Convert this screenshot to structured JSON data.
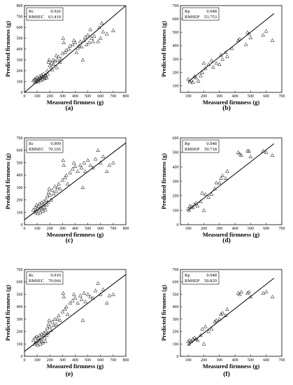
{
  "figure_kind": "scatter panels",
  "chart_data": [
    {
      "type": "scatter",
      "panel_label": "(a)",
      "xlabel": "Measured firmness (g)",
      "ylabel": "Predicted firmness (g)",
      "xlim": [
        0,
        800
      ],
      "ylim": [
        0,
        800
      ],
      "xticks": [
        0,
        100,
        200,
        300,
        400,
        500,
        600,
        700,
        800
      ],
      "yticks": [
        0,
        100,
        200,
        300,
        400,
        500,
        600,
        700,
        800
      ],
      "stats": [
        {
          "name": "Rc",
          "value": "0.926"
        },
        {
          "name": "RMSEC",
          "value": "63.410"
        }
      ],
      "line": [
        [
          0,
          0
        ],
        [
          800,
          800
        ]
      ],
      "points": [
        [
          70,
          110
        ],
        [
          80,
          120
        ],
        [
          85,
          95
        ],
        [
          90,
          130
        ],
        [
          95,
          105
        ],
        [
          100,
          140
        ],
        [
          105,
          115
        ],
        [
          110,
          100
        ],
        [
          115,
          125
        ],
        [
          120,
          150
        ],
        [
          125,
          135
        ],
        [
          130,
          110
        ],
        [
          135,
          160
        ],
        [
          140,
          145
        ],
        [
          145,
          120
        ],
        [
          150,
          170
        ],
        [
          155,
          140
        ],
        [
          160,
          130
        ],
        [
          165,
          160
        ],
        [
          170,
          150
        ],
        [
          175,
          135
        ],
        [
          180,
          200
        ],
        [
          185,
          170
        ],
        [
          190,
          280
        ],
        [
          195,
          300
        ],
        [
          200,
          250
        ],
        [
          210,
          230
        ],
        [
          215,
          270
        ],
        [
          220,
          210
        ],
        [
          225,
          300
        ],
        [
          230,
          260
        ],
        [
          240,
          290
        ],
        [
          250,
          340
        ],
        [
          255,
          230
        ],
        [
          260,
          300
        ],
        [
          270,
          330
        ],
        [
          280,
          280
        ],
        [
          290,
          310
        ],
        [
          300,
          360
        ],
        [
          305,
          500
        ],
        [
          310,
          460
        ],
        [
          320,
          370
        ],
        [
          330,
          390
        ],
        [
          350,
          400
        ],
        [
          360,
          430
        ],
        [
          380,
          440
        ],
        [
          390,
          480
        ],
        [
          400,
          460
        ],
        [
          410,
          370
        ],
        [
          420,
          410
        ],
        [
          430,
          430
        ],
        [
          440,
          470
        ],
        [
          450,
          420
        ],
        [
          460,
          300
        ],
        [
          470,
          480
        ],
        [
          480,
          510
        ],
        [
          490,
          440
        ],
        [
          500,
          530
        ],
        [
          510,
          460
        ],
        [
          520,
          580
        ],
        [
          530,
          500
        ],
        [
          540,
          470
        ],
        [
          550,
          520
        ],
        [
          580,
          470
        ],
        [
          590,
          600
        ],
        [
          600,
          500
        ],
        [
          610,
          640
        ],
        [
          620,
          560
        ],
        [
          650,
          540
        ],
        [
          700,
          570
        ]
      ]
    },
    {
      "type": "scatter",
      "panel_label": "(b)",
      "xlabel": "Measured firmness (g)",
      "ylabel": "Predicted firmness (g)",
      "xlim": [
        50,
        700
      ],
      "ylim": [
        50,
        700
      ],
      "xticks": [
        100,
        200,
        300,
        400,
        500,
        600,
        700
      ],
      "yticks": [
        100,
        200,
        300,
        400,
        500,
        600,
        700
      ],
      "stats": [
        {
          "name": "Rp",
          "value": "0.948"
        },
        {
          "name": "RMSEP",
          "value": "53.753"
        }
      ],
      "line": [
        [
          100,
          130
        ],
        [
          650,
          640
        ]
      ],
      "points": [
        [
          100,
          150
        ],
        [
          110,
          130
        ],
        [
          120,
          140
        ],
        [
          130,
          125
        ],
        [
          140,
          170
        ],
        [
          150,
          160
        ],
        [
          165,
          135
        ],
        [
          180,
          175
        ],
        [
          190,
          200
        ],
        [
          200,
          270
        ],
        [
          210,
          230
        ],
        [
          230,
          260
        ],
        [
          250,
          290
        ],
        [
          260,
          240
        ],
        [
          280,
          270
        ],
        [
          300,
          260
        ],
        [
          310,
          330
        ],
        [
          320,
          300
        ],
        [
          340,
          350
        ],
        [
          350,
          320
        ],
        [
          380,
          380
        ],
        [
          420,
          440
        ],
        [
          430,
          450
        ],
        [
          470,
          410
        ],
        [
          480,
          500
        ],
        [
          490,
          490
        ],
        [
          500,
          460
        ],
        [
          580,
          480
        ],
        [
          600,
          510
        ],
        [
          640,
          440
        ]
      ]
    },
    {
      "type": "scatter",
      "panel_label": "(c)",
      "xlabel": "Measured firmness (g)",
      "ylabel": "Predicted firmness (g)",
      "xlim": [
        0,
        800
      ],
      "ylim": [
        0,
        700
      ],
      "xticks": [
        0,
        100,
        200,
        300,
        400,
        500,
        600,
        700,
        800
      ],
      "yticks": [
        0,
        100,
        200,
        300,
        400,
        500,
        600,
        700
      ],
      "stats": [
        {
          "name": "Rc",
          "value": "0.909"
        },
        {
          "name": "RMSEC",
          "value": "70.165"
        }
      ],
      "line": [
        [
          0,
          40
        ],
        [
          800,
          660
        ]
      ],
      "points": [
        [
          70,
          120
        ],
        [
          80,
          100
        ],
        [
          85,
          140
        ],
        [
          90,
          110
        ],
        [
          95,
          160
        ],
        [
          100,
          130
        ],
        [
          105,
          90
        ],
        [
          110,
          150
        ],
        [
          115,
          120
        ],
        [
          120,
          170
        ],
        [
          125,
          100
        ],
        [
          130,
          140
        ],
        [
          135,
          180
        ],
        [
          140,
          130
        ],
        [
          145,
          110
        ],
        [
          150,
          160
        ],
        [
          155,
          190
        ],
        [
          160,
          140
        ],
        [
          165,
          120
        ],
        [
          170,
          200
        ],
        [
          175,
          160
        ],
        [
          180,
          230
        ],
        [
          185,
          180
        ],
        [
          190,
          260
        ],
        [
          195,
          290
        ],
        [
          200,
          240
        ],
        [
          210,
          200
        ],
        [
          220,
          280
        ],
        [
          230,
          250
        ],
        [
          240,
          310
        ],
        [
          250,
          270
        ],
        [
          260,
          300
        ],
        [
          270,
          330
        ],
        [
          280,
          290
        ],
        [
          300,
          360
        ],
        [
          305,
          520
        ],
        [
          310,
          480
        ],
        [
          320,
          380
        ],
        [
          330,
          400
        ],
        [
          340,
          330
        ],
        [
          360,
          420
        ],
        [
          380,
          450
        ],
        [
          390,
          500
        ],
        [
          400,
          470
        ],
        [
          420,
          430
        ],
        [
          440,
          480
        ],
        [
          450,
          460
        ],
        [
          460,
          300
        ],
        [
          470,
          500
        ],
        [
          480,
          430
        ],
        [
          500,
          520
        ],
        [
          520,
          480
        ],
        [
          540,
          460
        ],
        [
          560,
          530
        ],
        [
          580,
          600
        ],
        [
          600,
          500
        ],
        [
          620,
          550
        ],
        [
          650,
          430
        ],
        [
          670,
          480
        ],
        [
          700,
          500
        ]
      ]
    },
    {
      "type": "scatter",
      "panel_label": "(d)",
      "xlabel": "Measured firmness (g)",
      "ylabel": "Predicted firmness (g)",
      "xlim": [
        50,
        700
      ],
      "ylim": [
        0,
        600
      ],
      "xticks": [
        100,
        200,
        300,
        400,
        500,
        600,
        700
      ],
      "yticks": [
        0,
        100,
        200,
        300,
        400,
        500,
        600
      ],
      "stats": [
        {
          "name": "Rp",
          "value": "0.948"
        },
        {
          "name": "RMSEP",
          "value": "50.718"
        }
      ],
      "line": [
        [
          100,
          100
        ],
        [
          650,
          560
        ]
      ],
      "points": [
        [
          100,
          110
        ],
        [
          105,
          100
        ],
        [
          110,
          130
        ],
        [
          120,
          125
        ],
        [
          130,
          120
        ],
        [
          140,
          140
        ],
        [
          150,
          150
        ],
        [
          160,
          130
        ],
        [
          180,
          160
        ],
        [
          190,
          220
        ],
        [
          200,
          100
        ],
        [
          210,
          210
        ],
        [
          230,
          190
        ],
        [
          250,
          210
        ],
        [
          270,
          250
        ],
        [
          280,
          290
        ],
        [
          300,
          290
        ],
        [
          310,
          320
        ],
        [
          320,
          340
        ],
        [
          340,
          320
        ],
        [
          350,
          370
        ],
        [
          420,
          500
        ],
        [
          430,
          490
        ],
        [
          440,
          480
        ],
        [
          480,
          510
        ],
        [
          490,
          510
        ],
        [
          500,
          470
        ],
        [
          580,
          510
        ],
        [
          600,
          500
        ],
        [
          640,
          480
        ]
      ]
    },
    {
      "type": "scatter",
      "panel_label": "(e)",
      "xlabel": "Measured firmness (g)",
      "ylabel": "Predicted firmness (g)",
      "xlim": [
        0,
        800
      ],
      "ylim": [
        0,
        700
      ],
      "xticks": [
        0,
        100,
        200,
        300,
        400,
        500,
        600,
        700,
        800
      ],
      "yticks": [
        0,
        100,
        200,
        300,
        400,
        500,
        600,
        700
      ],
      "stats": [
        {
          "name": "Rc",
          "value": "0.910"
        },
        {
          "name": "RMSEC",
          "value": "70.066"
        }
      ],
      "line": [
        [
          0,
          40
        ],
        [
          800,
          660
        ]
      ],
      "points": [
        [
          70,
          130
        ],
        [
          80,
          100
        ],
        [
          85,
          150
        ],
        [
          90,
          110
        ],
        [
          95,
          160
        ],
        [
          100,
          120
        ],
        [
          105,
          90
        ],
        [
          110,
          150
        ],
        [
          115,
          130
        ],
        [
          120,
          170
        ],
        [
          125,
          100
        ],
        [
          130,
          140
        ],
        [
          135,
          180
        ],
        [
          140,
          120
        ],
        [
          145,
          110
        ],
        [
          150,
          170
        ],
        [
          155,
          190
        ],
        [
          160,
          150
        ],
        [
          165,
          120
        ],
        [
          170,
          200
        ],
        [
          175,
          170
        ],
        [
          180,
          230
        ],
        [
          185,
          190
        ],
        [
          190,
          260
        ],
        [
          195,
          290
        ],
        [
          200,
          240
        ],
        [
          210,
          210
        ],
        [
          220,
          280
        ],
        [
          230,
          250
        ],
        [
          240,
          300
        ],
        [
          250,
          260
        ],
        [
          260,
          300
        ],
        [
          270,
          330
        ],
        [
          280,
          290
        ],
        [
          300,
          360
        ],
        [
          305,
          510
        ],
        [
          310,
          480
        ],
        [
          320,
          380
        ],
        [
          330,
          400
        ],
        [
          340,
          340
        ],
        [
          360,
          430
        ],
        [
          380,
          450
        ],
        [
          390,
          500
        ],
        [
          400,
          470
        ],
        [
          420,
          430
        ],
        [
          440,
          490
        ],
        [
          450,
          460
        ],
        [
          460,
          290
        ],
        [
          470,
          510
        ],
        [
          480,
          440
        ],
        [
          500,
          500
        ],
        [
          520,
          480
        ],
        [
          540,
          470
        ],
        [
          560,
          530
        ],
        [
          580,
          590
        ],
        [
          600,
          500
        ],
        [
          620,
          540
        ],
        [
          650,
          430
        ],
        [
          670,
          490
        ],
        [
          700,
          500
        ]
      ]
    },
    {
      "type": "scatter",
      "panel_label": "(f)",
      "xlabel": "Measured firmness (g)",
      "ylabel": "Predicted firmness (g)",
      "xlim": [
        50,
        700
      ],
      "ylim": [
        0,
        700
      ],
      "xticks": [
        100,
        200,
        300,
        400,
        500,
        600,
        700
      ],
      "yticks": [
        0,
        100,
        200,
        300,
        400,
        500,
        600,
        700
      ],
      "stats": [
        {
          "name": "Rp",
          "value": "0.948"
        },
        {
          "name": "RMSEP",
          "value": "50.829"
        }
      ],
      "line": [
        [
          100,
          90
        ],
        [
          650,
          630
        ]
      ],
      "points": [
        [
          100,
          120
        ],
        [
          105,
          100
        ],
        [
          110,
          130
        ],
        [
          120,
          120
        ],
        [
          130,
          140
        ],
        [
          140,
          150
        ],
        [
          150,
          140
        ],
        [
          160,
          130
        ],
        [
          180,
          170
        ],
        [
          190,
          220
        ],
        [
          200,
          100
        ],
        [
          210,
          240
        ],
        [
          230,
          200
        ],
        [
          250,
          220
        ],
        [
          270,
          280
        ],
        [
          280,
          290
        ],
        [
          300,
          300
        ],
        [
          310,
          340
        ],
        [
          320,
          350
        ],
        [
          340,
          330
        ],
        [
          350,
          380
        ],
        [
          420,
          510
        ],
        [
          430,
          500
        ],
        [
          440,
          520
        ],
        [
          480,
          510
        ],
        [
          490,
          520
        ],
        [
          500,
          480
        ],
        [
          580,
          510
        ],
        [
          600,
          520
        ],
        [
          640,
          480
        ]
      ]
    }
  ]
}
